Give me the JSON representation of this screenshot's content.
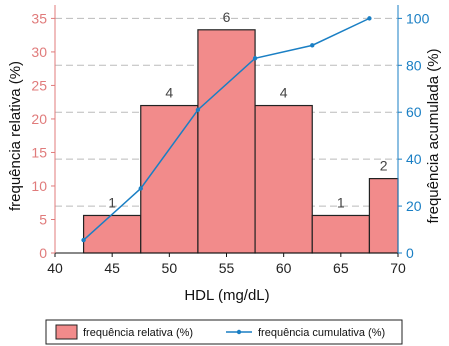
{
  "chart_data": {
    "type": "bar",
    "xlabel": "HDL (mg/dL)",
    "ylabel_left": "frequência relativa (%)",
    "ylabel_right": "frequência acumulada (%)",
    "x_ticks": [
      "40",
      "45",
      "50",
      "55",
      "60",
      "65",
      "70"
    ],
    "y_left_ticks": [
      "0",
      "5",
      "10",
      "15",
      "20",
      "25",
      "30",
      "35"
    ],
    "y_right_ticks": [
      "0",
      "20",
      "40",
      "60",
      "80",
      "100"
    ],
    "xlim": [
      40,
      70
    ],
    "ylim_left": [
      0,
      37
    ],
    "ylim_right": [
      0,
      105.7
    ],
    "bins": [
      {
        "x0": 42.5,
        "x1": 47.5,
        "relative": 5.6,
        "count_label": "1"
      },
      {
        "x0": 47.5,
        "x1": 52.5,
        "relative": 22.0,
        "count_label": "4"
      },
      {
        "x0": 52.5,
        "x1": 57.5,
        "relative": 33.3,
        "count_label": "6"
      },
      {
        "x0": 57.5,
        "x1": 62.5,
        "relative": 22.0,
        "count_label": "4"
      },
      {
        "x0": 62.5,
        "x1": 67.5,
        "relative": 5.6,
        "count_label": "1"
      },
      {
        "x0": 67.5,
        "x1": 72.5,
        "relative": 11.1,
        "count_label": "2"
      }
    ],
    "cumulative": {
      "x": [
        42.5,
        47.5,
        52.5,
        57.5,
        62.5,
        67.5
      ],
      "y": [
        5.5,
        27.5,
        61,
        83,
        88.5,
        100
      ]
    },
    "dashed_gridlines_at_cumulative": [
      20,
      40,
      60,
      80,
      100
    ],
    "series_names": {
      "bars": "frequência relativa (%)",
      "line": "frequência cumulativa (%)"
    },
    "legend_position": "bottom",
    "colors": {
      "bar_fill": "#f28b8b",
      "bar_edge": "#222222",
      "line": "#1a7fc4",
      "left_axis": "#e07b7b",
      "right_axis": "#1a7fc4",
      "grid": "#bbbbbb"
    }
  }
}
